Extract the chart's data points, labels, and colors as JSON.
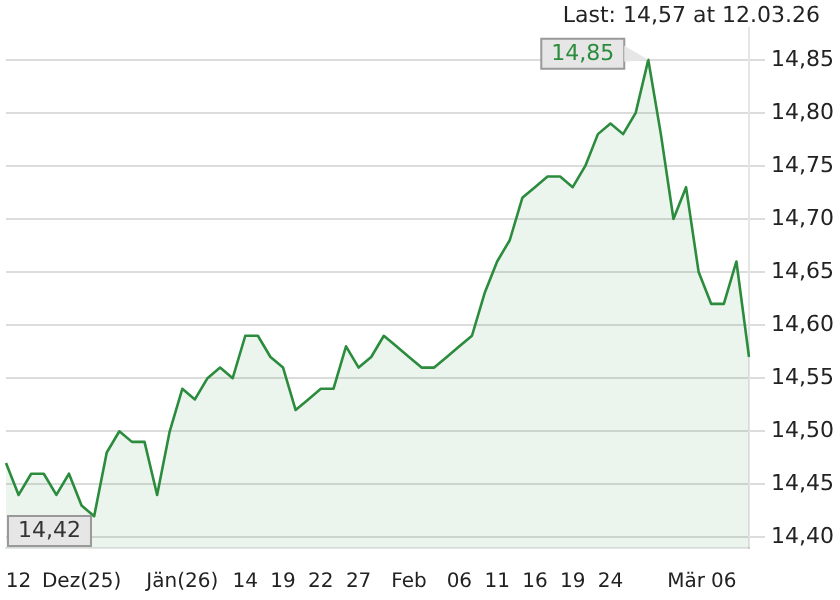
{
  "chart_data": {
    "type": "area",
    "categories": [
      null,
      "12",
      null,
      null,
      null,
      null,
      "Dez(25)",
      null,
      null,
      null,
      null,
      null,
      null,
      null,
      "Jän(26)",
      null,
      null,
      null,
      null,
      "14",
      null,
      null,
      "19",
      null,
      null,
      "22",
      null,
      null,
      "27",
      null,
      null,
      null,
      "Feb",
      null,
      null,
      null,
      "06",
      null,
      null,
      "11",
      null,
      null,
      "16",
      null,
      null,
      "19",
      null,
      null,
      "24",
      null,
      null,
      null,
      null,
      null,
      "Mär",
      null,
      null,
      "06",
      null,
      null
    ],
    "series": [
      {
        "color": "#2a8c3c",
        "values": [
          14.47,
          14.44,
          14.46,
          14.46,
          14.44,
          14.46,
          14.43,
          14.42,
          14.48,
          14.5,
          14.49,
          14.49,
          14.44,
          14.5,
          14.54,
          14.53,
          14.55,
          14.56,
          14.55,
          14.59,
          14.59,
          14.57,
          14.56,
          14.52,
          14.53,
          14.54,
          14.54,
          14.58,
          14.56,
          14.57,
          14.59,
          14.58,
          14.57,
          14.56,
          14.56,
          14.57,
          14.58,
          14.59,
          14.63,
          14.66,
          14.68,
          14.72,
          14.73,
          14.74,
          14.74,
          14.73,
          14.75,
          14.78,
          14.79,
          14.78,
          14.8,
          14.85,
          14.78,
          14.7,
          14.73,
          14.65,
          14.62,
          14.62,
          14.66,
          14.57
        ]
      }
    ],
    "ylim": [
      14.39,
      14.88
    ],
    "yticks": [
      {
        "value": 14.4,
        "label": "14,40"
      },
      {
        "value": 14.45,
        "label": "14,45"
      },
      {
        "value": 14.5,
        "label": "14,50"
      },
      {
        "value": 14.55,
        "label": "14,55"
      },
      {
        "value": 14.6,
        "label": "14,60"
      },
      {
        "value": 14.65,
        "label": "14,65"
      },
      {
        "value": 14.7,
        "label": "14,70"
      },
      {
        "value": 14.75,
        "label": "14,75"
      },
      {
        "value": 14.8,
        "label": "14,80"
      },
      {
        "value": 14.85,
        "label": "14,85"
      }
    ],
    "grid": "y",
    "legend": false,
    "marker": "none",
    "line_style": "solid",
    "annotations": [
      "Last: 14,57 at 12.03.26",
      "14,85",
      "14,42"
    ]
  }
}
